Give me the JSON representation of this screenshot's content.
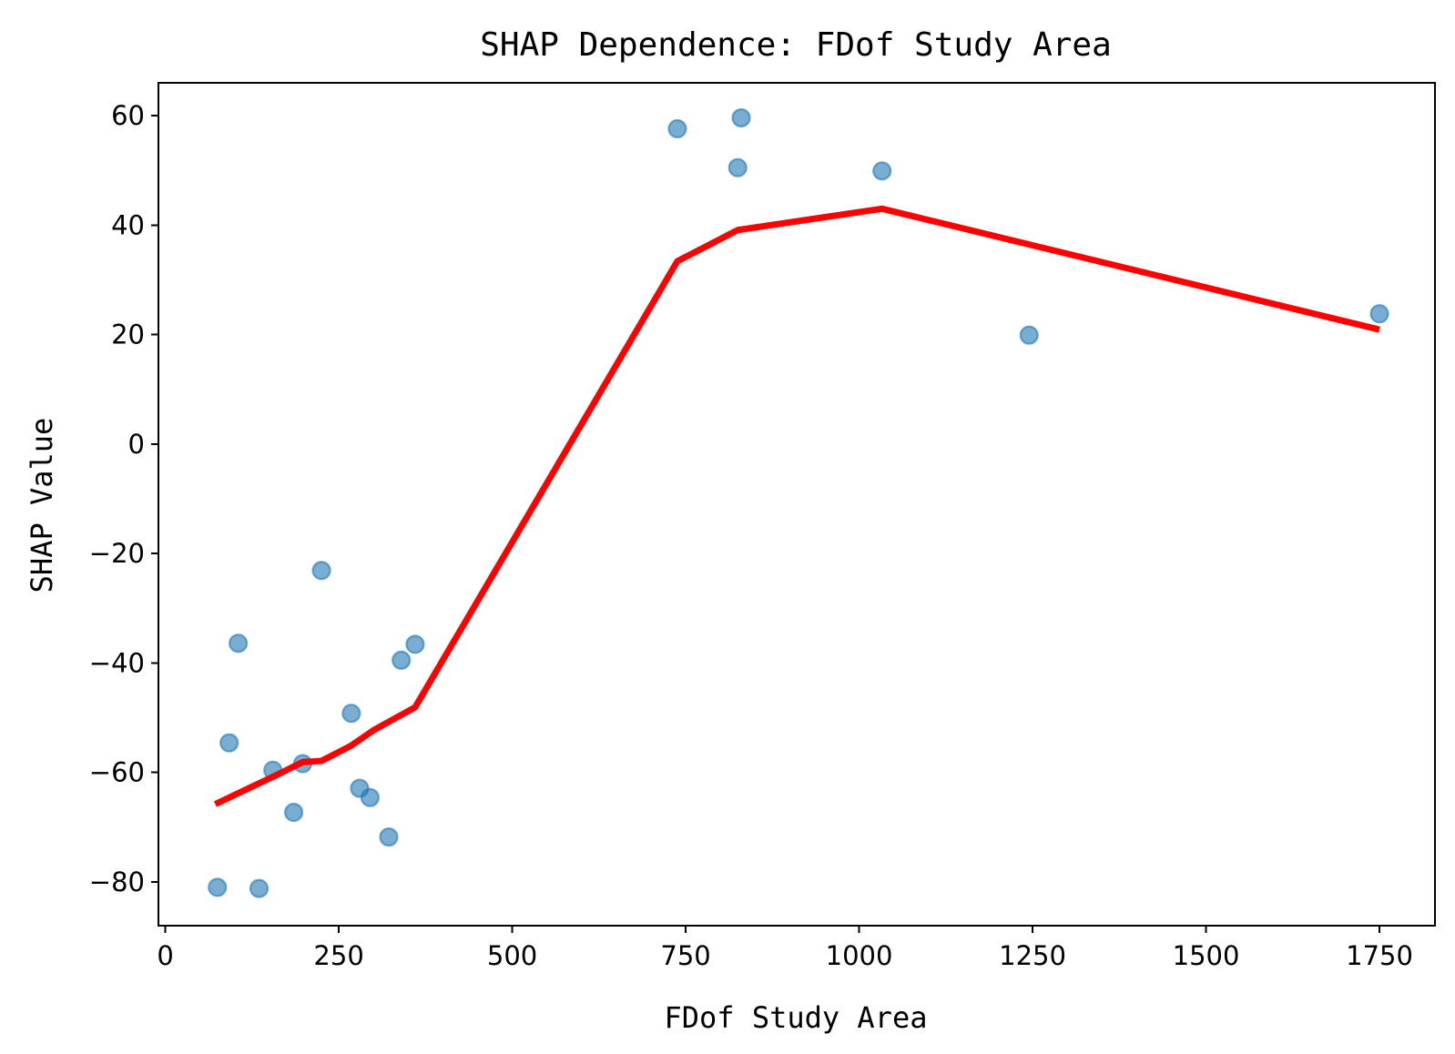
{
  "chart_data": {
    "type": "scatter",
    "title": "SHAP Dependence: FDof Study Area",
    "xlabel": "FDof Study Area",
    "ylabel": "SHAP Value",
    "xlim": [
      -10,
      1830
    ],
    "ylim": [
      -88,
      66
    ],
    "x_ticks": [
      0,
      250,
      500,
      750,
      1000,
      1250,
      1500,
      1750
    ],
    "x_tick_labels": [
      "0",
      "250",
      "500",
      "750",
      "1000",
      "1250",
      "1500",
      "1750"
    ],
    "y_ticks": [
      -80,
      -60,
      -40,
      -20,
      0,
      20,
      40,
      60
    ],
    "y_tick_labels": [
      "−80",
      "−60",
      "−40",
      "−20",
      "0",
      "20",
      "40",
      "60"
    ],
    "grid": false,
    "series": [
      {
        "type": "scatter",
        "color": "#1f77b4",
        "points": [
          {
            "x": 75,
            "y": -81
          },
          {
            "x": 92,
            "y": -54.6
          },
          {
            "x": 105,
            "y": -36.4
          },
          {
            "x": 135,
            "y": -81.2
          },
          {
            "x": 155,
            "y": -59.6
          },
          {
            "x": 185,
            "y": -67.3
          },
          {
            "x": 198,
            "y": -58.4
          },
          {
            "x": 225,
            "y": -23.1
          },
          {
            "x": 268,
            "y": -49.2
          },
          {
            "x": 280,
            "y": -62.9
          },
          {
            "x": 295,
            "y": -64.6
          },
          {
            "x": 322,
            "y": -71.8
          },
          {
            "x": 340,
            "y": -39.5
          },
          {
            "x": 360,
            "y": -36.6
          },
          {
            "x": 738,
            "y": 57.6
          },
          {
            "x": 825,
            "y": 50.5
          },
          {
            "x": 830,
            "y": 59.6
          },
          {
            "x": 1033,
            "y": 49.9
          },
          {
            "x": 1245,
            "y": 19.9
          },
          {
            "x": 1750,
            "y": 23.8
          }
        ]
      },
      {
        "type": "line",
        "color": "#ff0000",
        "points": [
          {
            "x": 72,
            "y": -65.8
          },
          {
            "x": 160,
            "y": -60.5
          },
          {
            "x": 198,
            "y": -58.1
          },
          {
            "x": 225,
            "y": -57.9
          },
          {
            "x": 268,
            "y": -55.1
          },
          {
            "x": 300,
            "y": -52.3
          },
          {
            "x": 360,
            "y": -48.1
          },
          {
            "x": 738,
            "y": 33.4
          },
          {
            "x": 825,
            "y": 39.1
          },
          {
            "x": 1033,
            "y": 43
          },
          {
            "x": 1750,
            "y": 20.9
          }
        ]
      }
    ]
  }
}
